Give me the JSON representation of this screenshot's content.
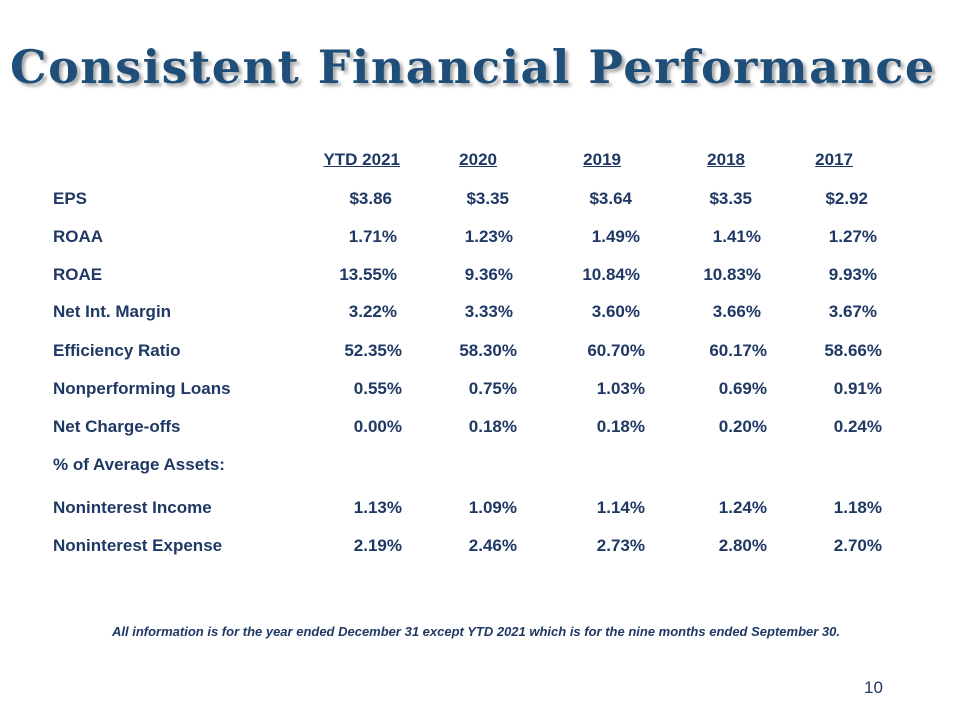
{
  "slide": {
    "title": "Consistent Financial Performance",
    "footnote": "All information is for the year ended December 31 except YTD 2021 which is for the nine months ended September 30.",
    "page_number": "10"
  },
  "table": {
    "columns": [
      "YTD 2021",
      "2020",
      "2019",
      "2018",
      "2017"
    ],
    "rows": [
      {
        "label": "EPS",
        "values": [
          "$3.86",
          "$3.35",
          "$3.64",
          "$3.35",
          "$2.92"
        ]
      },
      {
        "label": "ROAA",
        "values": [
          "1.71%",
          "1.23%",
          "1.49%",
          "1.41%",
          "1.27%"
        ]
      },
      {
        "label": "ROAE",
        "values": [
          "13.55%",
          "9.36%",
          "10.84%",
          "10.83%",
          "9.93%"
        ]
      },
      {
        "label": "Net Int. Margin",
        "values": [
          "3.22%",
          "3.33%",
          "3.60%",
          "3.66%",
          "3.67%"
        ]
      },
      {
        "label": "Efficiency Ratio",
        "values": [
          "52.35%",
          "58.30%",
          "60.70%",
          "60.17%",
          "58.66%"
        ]
      },
      {
        "label": "Nonperforming Loans",
        "values": [
          "0.55%",
          "0.75%",
          "1.03%",
          "0.69%",
          "0.91%"
        ]
      },
      {
        "label": "Net Charge-offs",
        "values": [
          "0.00%",
          "0.18%",
          "0.18%",
          "0.20%",
          "0.24%"
        ]
      },
      {
        "label": "% of Average Assets:",
        "values": []
      },
      {
        "label": "Noninterest Income",
        "values": [
          "1.13%",
          "1.09%",
          "1.14%",
          "1.24%",
          "1.18%"
        ]
      },
      {
        "label": "Noninterest Expense",
        "values": [
          "2.19%",
          "2.46%",
          "2.73%",
          "2.80%",
          "2.70%"
        ]
      }
    ]
  }
}
